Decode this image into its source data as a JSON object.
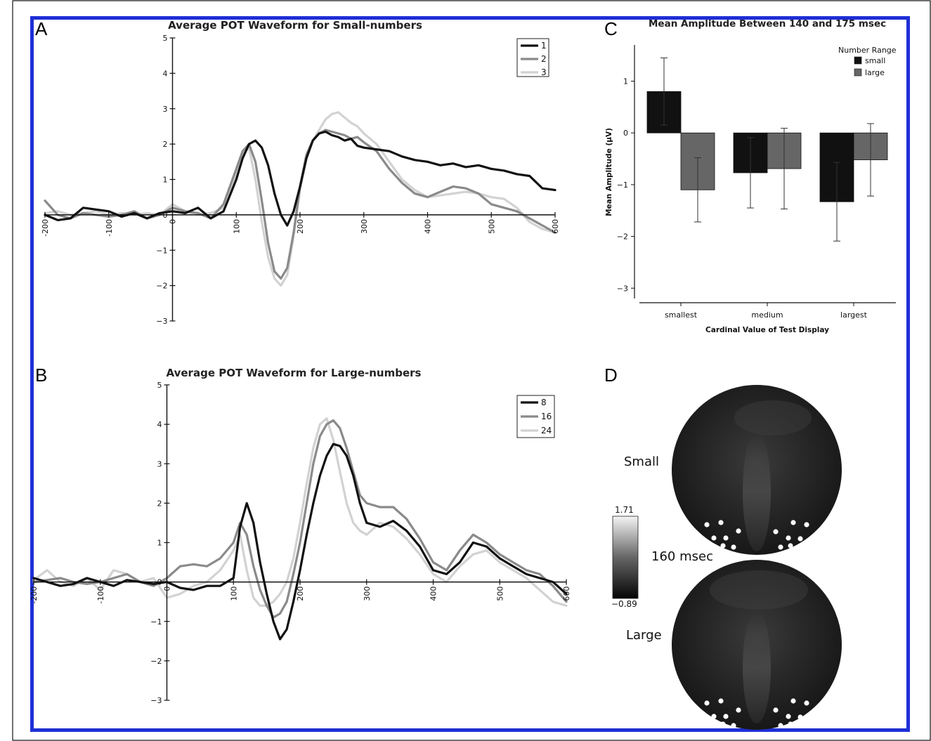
{
  "panels": {
    "A": {
      "letter": "A",
      "chart_data": {
        "type": "line",
        "title": "Average POT Waveform for Small-numbers",
        "xlabel": "",
        "ylabel": "",
        "xlim": [
          -200,
          600
        ],
        "ylim": [
          -3,
          5
        ],
        "xticks": [
          "-200",
          "-100",
          "0",
          "100",
          "200",
          "300",
          "400",
          "500",
          "600"
        ],
        "yticks": [
          "-3",
          "-2",
          "-1",
          "0",
          "1",
          "2",
          "3",
          "4",
          "5"
        ],
        "legend_position": "top-right",
        "series": [
          {
            "name": "1",
            "color": "#111111",
            "x": [
              -200,
              -180,
              -160,
              -140,
              -120,
              -100,
              -80,
              -60,
              -40,
              -20,
              0,
              20,
              40,
              60,
              80,
              100,
              110,
              120,
              130,
              140,
              150,
              160,
              170,
              180,
              190,
              200,
              210,
              220,
              230,
              240,
              250,
              260,
              270,
              280,
              290,
              300,
              320,
              340,
              360,
              380,
              400,
              420,
              440,
              460,
              480,
              500,
              520,
              540,
              560,
              580,
              600
            ],
            "y": [
              0,
              -0.15,
              -0.1,
              0.2,
              0.15,
              0.1,
              -0.05,
              0.05,
              -0.1,
              0.05,
              0.1,
              0.05,
              0.2,
              -0.1,
              0.1,
              1.0,
              1.6,
              2.0,
              2.1,
              1.9,
              1.4,
              0.6,
              0.0,
              -0.3,
              0.1,
              0.8,
              1.6,
              2.1,
              2.3,
              2.35,
              2.25,
              2.2,
              2.1,
              2.15,
              1.95,
              1.9,
              1.85,
              1.8,
              1.65,
              1.55,
              1.5,
              1.4,
              1.45,
              1.35,
              1.4,
              1.3,
              1.25,
              1.15,
              1.1,
              0.75,
              0.7
            ]
          },
          {
            "name": "2",
            "color": "#8a8a8a",
            "x": [
              -200,
              -180,
              -160,
              -140,
              -120,
              -100,
              -80,
              -60,
              -40,
              -20,
              0,
              20,
              40,
              60,
              80,
              100,
              110,
              120,
              130,
              140,
              150,
              160,
              170,
              180,
              190,
              200,
              210,
              220,
              230,
              240,
              250,
              260,
              270,
              280,
              290,
              300,
              320,
              340,
              360,
              380,
              400,
              420,
              440,
              460,
              480,
              500,
              520,
              540,
              560,
              580,
              600
            ],
            "y": [
              0.4,
              0.0,
              -0.1,
              0.05,
              0.0,
              -0.05,
              0.0,
              0.1,
              -0.1,
              0.0,
              0.2,
              0.1,
              0.05,
              -0.1,
              0.3,
              1.3,
              1.8,
              2.0,
              1.5,
              0.4,
              -0.8,
              -1.6,
              -1.8,
              -1.5,
              -0.5,
              0.8,
              1.7,
              2.1,
              2.3,
              2.4,
              2.35,
              2.3,
              2.25,
              2.15,
              2.2,
              2.05,
              1.8,
              1.3,
              0.9,
              0.6,
              0.5,
              0.65,
              0.8,
              0.75,
              0.6,
              0.3,
              0.2,
              0.1,
              -0.1,
              -0.3,
              -0.5
            ]
          },
          {
            "name": "3",
            "color": "#d2d2d2",
            "x": [
              -200,
              -180,
              -160,
              -140,
              -120,
              -100,
              -80,
              -60,
              -40,
              -20,
              0,
              20,
              40,
              60,
              80,
              100,
              110,
              120,
              130,
              140,
              150,
              160,
              170,
              180,
              190,
              200,
              210,
              220,
              230,
              240,
              250,
              260,
              270,
              280,
              290,
              300,
              320,
              340,
              360,
              380,
              400,
              420,
              440,
              460,
              480,
              500,
              520,
              540,
              560,
              580,
              600
            ],
            "y": [
              0.05,
              0.1,
              0.0,
              0.05,
              0.1,
              0.0,
              0.05,
              0.0,
              0.05,
              0.0,
              0.3,
              0.1,
              0.0,
              0.05,
              0.2,
              1.2,
              1.7,
              1.9,
              1.0,
              -0.2,
              -1.2,
              -1.8,
              -2.0,
              -1.7,
              -0.6,
              0.7,
              1.6,
              2.1,
              2.4,
              2.7,
              2.85,
              2.9,
              2.75,
              2.6,
              2.5,
              2.3,
              2.0,
              1.5,
              1.0,
              0.7,
              0.5,
              0.55,
              0.6,
              0.65,
              0.6,
              0.5,
              0.45,
              0.2,
              -0.2,
              -0.4,
              -0.5
            ]
          }
        ]
      }
    },
    "B": {
      "letter": "B",
      "chart_data": {
        "type": "line",
        "title": "Average POT Waveform for Large-numbers",
        "xlabel": "",
        "ylabel": "",
        "xlim": [
          -200,
          600
        ],
        "ylim": [
          -3,
          5
        ],
        "xticks": [
          "-200",
          "-100",
          "0",
          "100",
          "200",
          "300",
          "400",
          "500",
          "600"
        ],
        "yticks": [
          "-3",
          "-2",
          "-1",
          "0",
          "1",
          "2",
          "3",
          "4",
          "5"
        ],
        "legend_position": "top-right",
        "series": [
          {
            "name": "8",
            "color": "#111111",
            "x": [
              -200,
              -180,
              -160,
              -140,
              -120,
              -100,
              -80,
              -60,
              -40,
              -20,
              0,
              20,
              40,
              60,
              80,
              100,
              110,
              120,
              130,
              140,
              150,
              160,
              170,
              180,
              190,
              200,
              210,
              220,
              230,
              240,
              250,
              260,
              270,
              280,
              290,
              300,
              320,
              340,
              360,
              380,
              400,
              420,
              440,
              460,
              480,
              500,
              520,
              540,
              560,
              580,
              600
            ],
            "y": [
              0.1,
              0.0,
              -0.1,
              -0.05,
              0.1,
              0.0,
              -0.1,
              0.05,
              0.0,
              -0.05,
              0.0,
              -0.15,
              -0.2,
              -0.1,
              -0.1,
              0.1,
              1.4,
              2.0,
              1.5,
              0.5,
              -0.3,
              -1.0,
              -1.45,
              -1.2,
              -0.5,
              0.3,
              1.2,
              2.0,
              2.7,
              3.2,
              3.5,
              3.45,
              3.2,
              2.7,
              2.0,
              1.5,
              1.4,
              1.55,
              1.3,
              0.9,
              0.3,
              0.2,
              0.5,
              1.0,
              0.9,
              0.6,
              0.4,
              0.2,
              0.1,
              0.0,
              -0.3
            ]
          },
          {
            "name": "16",
            "color": "#8a8a8a",
            "x": [
              -200,
              -180,
              -160,
              -140,
              -120,
              -100,
              -80,
              -60,
              -40,
              -20,
              0,
              20,
              40,
              60,
              80,
              100,
              110,
              120,
              130,
              140,
              150,
              160,
              170,
              180,
              190,
              200,
              210,
              220,
              230,
              240,
              250,
              260,
              270,
              280,
              290,
              300,
              320,
              340,
              360,
              380,
              400,
              420,
              440,
              460,
              480,
              500,
              520,
              540,
              560,
              580,
              600
            ],
            "y": [
              0.0,
              0.05,
              0.1,
              0.0,
              -0.05,
              0.0,
              0.1,
              0.2,
              0.0,
              -0.1,
              0.1,
              0.4,
              0.45,
              0.4,
              0.6,
              1.0,
              1.5,
              1.2,
              0.4,
              -0.2,
              -0.6,
              -0.9,
              -0.8,
              -0.5,
              0.2,
              1.0,
              2.0,
              3.0,
              3.7,
              4.0,
              4.1,
              3.9,
              3.4,
              2.8,
              2.2,
              2.0,
              1.9,
              1.9,
              1.6,
              1.1,
              0.5,
              0.3,
              0.8,
              1.2,
              1.0,
              0.7,
              0.5,
              0.3,
              0.2,
              -0.1,
              -0.5
            ]
          },
          {
            "name": "24",
            "color": "#d2d2d2",
            "x": [
              -200,
              -180,
              -160,
              -140,
              -120,
              -100,
              -80,
              -60,
              -40,
              -20,
              0,
              20,
              40,
              60,
              80,
              100,
              110,
              120,
              130,
              140,
              150,
              160,
              170,
              180,
              190,
              200,
              210,
              220,
              230,
              240,
              250,
              260,
              270,
              280,
              290,
              300,
              320,
              340,
              360,
              380,
              400,
              420,
              440,
              460,
              480,
              500,
              520,
              540,
              560,
              580,
              600
            ],
            "y": [
              0.05,
              0.3,
              0.0,
              -0.1,
              0.1,
              -0.2,
              0.3,
              0.2,
              0.0,
              0.1,
              -0.4,
              -0.3,
              -0.1,
              0.0,
              0.3,
              0.8,
              1.2,
              0.3,
              -0.4,
              -0.6,
              -0.6,
              -0.5,
              -0.3,
              0.0,
              0.6,
              1.5,
              2.5,
              3.4,
              4.0,
              4.15,
              3.6,
              2.8,
              2.0,
              1.5,
              1.3,
              1.2,
              1.5,
              1.4,
              1.1,
              0.7,
              0.2,
              0.0,
              0.4,
              0.7,
              0.8,
              0.5,
              0.3,
              0.1,
              -0.2,
              -0.5,
              -0.6
            ]
          }
        ]
      }
    },
    "C": {
      "letter": "C",
      "chart_data": {
        "type": "bar",
        "title": "Mean Amplitude Between 140  and 175 msec",
        "xlabel": "Cardinal Value of Test Display",
        "ylabel": "Mean Amplitude (μV)",
        "ylim": [
          -3.2,
          1.7
        ],
        "yticks": [
          "-3",
          "-2",
          "-1",
          "0",
          "1"
        ],
        "categories": [
          "smallest",
          "medium",
          "largest"
        ],
        "legend_title": "Number Range",
        "legend_position": "top-right",
        "series": [
          {
            "name": "small",
            "color": "#111111",
            "values": [
              0.8,
              -0.77,
              -1.33
            ],
            "error": [
              0.65,
              0.68,
              0.76
            ]
          },
          {
            "name": "large",
            "color": "#666666",
            "values": [
              -1.1,
              -0.69,
              -0.52
            ],
            "error": [
              0.62,
              0.78,
              0.7
            ]
          }
        ]
      }
    },
    "D": {
      "letter": "D",
      "label_small": "Small",
      "label_large": "Large",
      "time_label": "160 msec",
      "scale_max": "1.71",
      "scale_min": "−0.89"
    }
  }
}
